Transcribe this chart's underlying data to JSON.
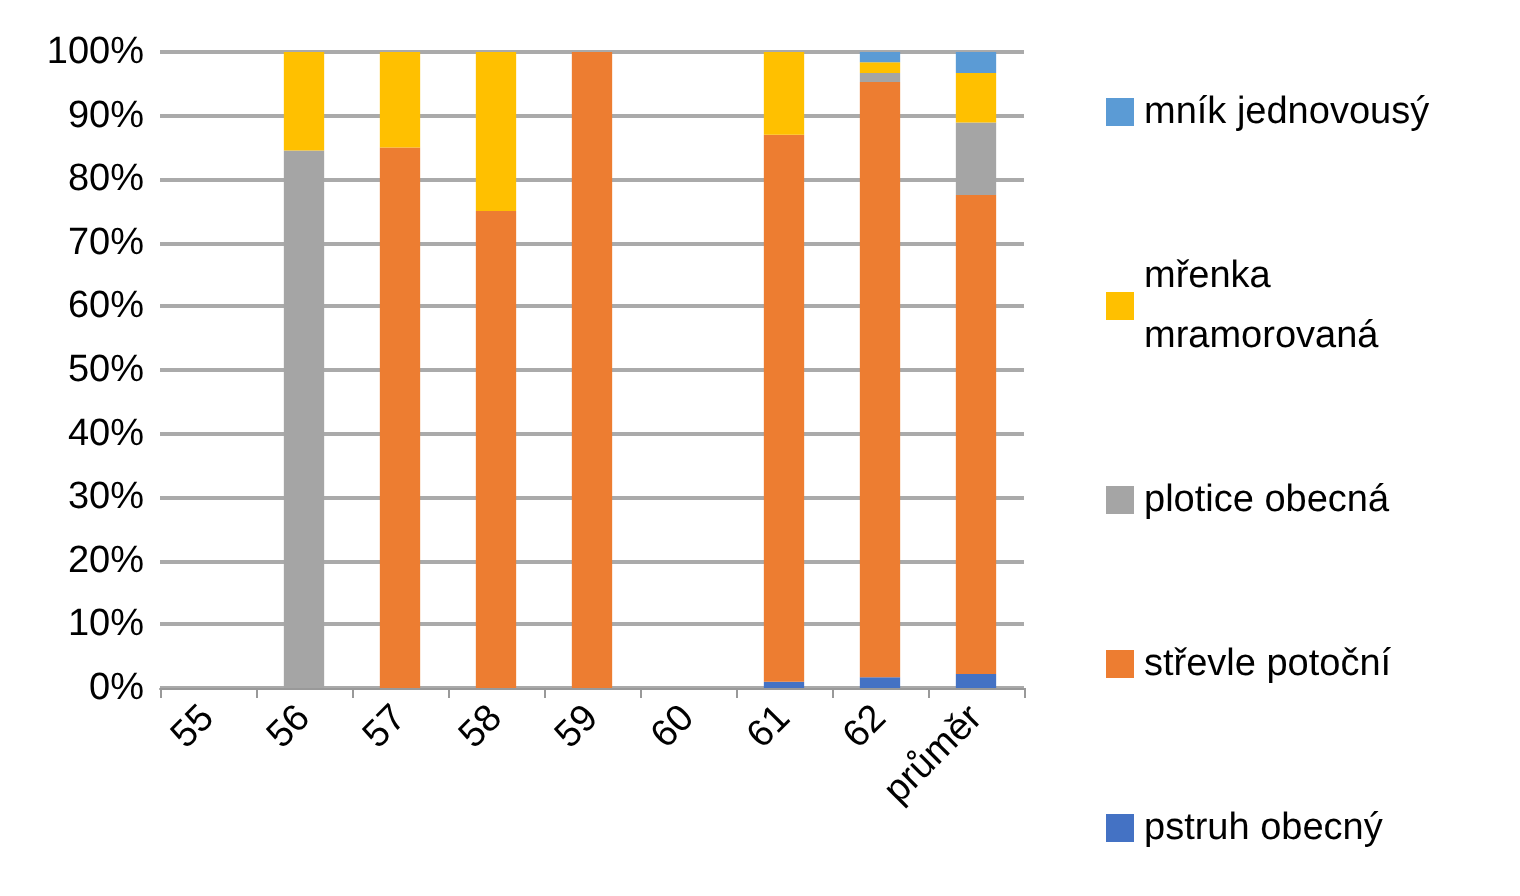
{
  "chart_data": {
    "type": "bar",
    "stacked": true,
    "categories": [
      "55",
      "56",
      "57",
      "58",
      "59",
      "60",
      "61",
      "62",
      "průměr"
    ],
    "series": [
      {
        "name": "pstruh obecný",
        "color": "#4472c4",
        "values": [
          0,
          0,
          0,
          0,
          0,
          0,
          1,
          1.7,
          2.2
        ]
      },
      {
        "name": "střevle potoční",
        "color": "#ed7d31",
        "values": [
          0,
          0,
          85,
          75,
          100,
          0,
          86,
          93.6,
          75.3
        ]
      },
      {
        "name": "plotice obecná",
        "color": "#a5a5a5",
        "values": [
          0,
          84.5,
          0,
          0,
          0,
          0,
          0,
          1.4,
          11.4
        ]
      },
      {
        "name": "mřenka mramorovaná",
        "color": "#ffc000",
        "values": [
          0,
          15.5,
          15,
          25,
          0,
          0,
          13,
          1.7,
          7.8
        ]
      },
      {
        "name": "mník jednovousý",
        "color": "#5b9bd5",
        "values": [
          0,
          0,
          0,
          0,
          0,
          0,
          0,
          1.6,
          3.3
        ]
      }
    ],
    "ylim": [
      0,
      100
    ],
    "yticks": [
      {
        "value": 0,
        "label": "0%"
      },
      {
        "value": 10,
        "label": "10%"
      },
      {
        "value": 20,
        "label": "20%"
      },
      {
        "value": 30,
        "label": "30%"
      },
      {
        "value": 40,
        "label": "40%"
      },
      {
        "value": 50,
        "label": "50%"
      },
      {
        "value": 60,
        "label": "60%"
      },
      {
        "value": 70,
        "label": "70%"
      },
      {
        "value": 80,
        "label": "80%"
      },
      {
        "value": 90,
        "label": "90%"
      },
      {
        "value": 100,
        "label": "100%"
      }
    ],
    "grid": "y",
    "legend": "right"
  }
}
